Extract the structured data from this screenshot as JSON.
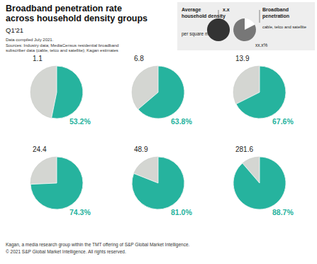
{
  "chart_data": {
    "type": "pie",
    "title": [
      "Broadband penetration rate",
      "across household density groups"
    ],
    "subtitle": "Q1'21",
    "notes": [
      "Data compiled July 2021.",
      "Sources: Industry data; MediaCensus residential broadband",
      "subscriber data (cable, telco and satellite); Kagan estimates"
    ],
    "key": {
      "density_label": [
        "Average",
        "household density"
      ],
      "density_unit": "per square mile",
      "density_example": "x.x",
      "penetration_label": [
        "Broadband",
        "penetration"
      ],
      "penetration_sub": "cable, telco and satellite",
      "penetration_example": "xx.x%"
    },
    "densities": [
      1.1,
      6.8,
      13.9,
      24.4,
      48.9,
      281.6
    ],
    "values": [
      53.2,
      63.8,
      67.6,
      74.3,
      81.0,
      88.7
    ],
    "value_labels": [
      "53.2%",
      "63.8%",
      "67.6%",
      "74.3%",
      "81.0%",
      "88.7%"
    ],
    "color": "#26b39e",
    "data_labels": true,
    "footer": [
      "Kagan, a media research group within the TMT offering of S&P Global Market Intelligence.",
      "© 2021 S&P Global Market Intelligence. All rights reserved."
    ]
  }
}
